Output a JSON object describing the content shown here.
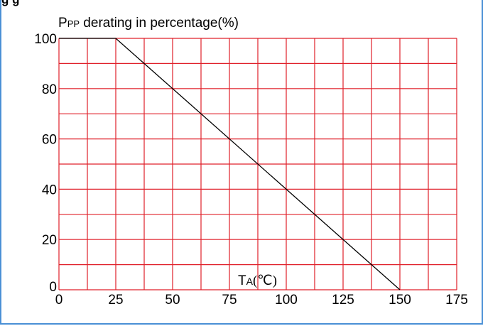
{
  "heading_partial": "g                          g",
  "chart_data": {
    "type": "line",
    "title": "",
    "ylabel_main": "P",
    "ylabel_sub": "PP",
    "ylabel_rest": " derating in percentage(%)",
    "xlabel_main": "T",
    "xlabel_sub": "A",
    "xlabel_rest": "(℃)",
    "x": [
      0,
      25,
      150
    ],
    "y": [
      100,
      100,
      0
    ],
    "xlim": [
      0,
      175
    ],
    "ylim": [
      0,
      100
    ],
    "xticks": [
      0,
      25,
      50,
      75,
      100,
      125,
      150,
      175
    ],
    "xtick_labels": [
      "0",
      "25",
      "50",
      "75",
      "100",
      "125",
      "150",
      "175"
    ],
    "yticks": [
      0,
      20,
      40,
      60,
      80,
      100
    ],
    "ytick_labels": [
      "0",
      "20",
      "40",
      "60",
      "80",
      "100"
    ],
    "x_gridlines": [
      0,
      12.5,
      25,
      37.5,
      50,
      62.5,
      75,
      87.5,
      100,
      112.5,
      125,
      137.5,
      150,
      162.5,
      175
    ],
    "y_gridlines": [
      0,
      10,
      20,
      30,
      40,
      50,
      60,
      70,
      80,
      90,
      100
    ],
    "grid": true,
    "grid_color": "#e0202a",
    "line_color": "#000000",
    "frame_color": "#4a90d6"
  }
}
